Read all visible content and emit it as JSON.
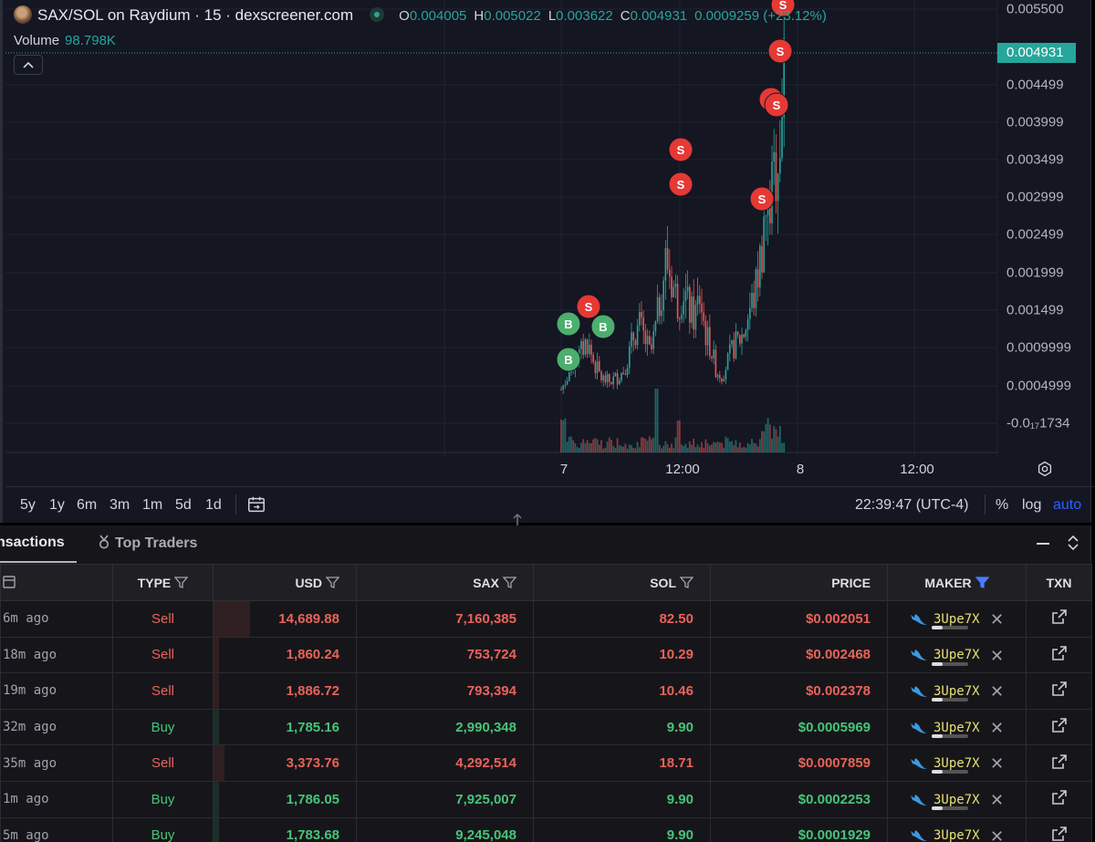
{
  "header": {
    "title": "SAX/SOL on Raydium · 15 · dexscreener.com",
    "ohlc": [
      {
        "label": "O",
        "value": "0.004005"
      },
      {
        "label": "H",
        "value": "0.005022"
      },
      {
        "label": "L",
        "value": "0.003622"
      },
      {
        "label": "C",
        "value": "0.004931"
      }
    ],
    "change": "0.0009259 (+23.12%)",
    "volume_label": "Volume",
    "volume_value": "98.798K"
  },
  "price_axis": {
    "ticks": [
      "0.005500",
      "0.004499",
      "0.003999",
      "0.003499",
      "0.002999",
      "0.002499",
      "0.001999",
      "0.001499",
      "0.0009999",
      "0.0004999",
      "-0.0₁₇1734"
    ],
    "current_price": "0.004931"
  },
  "time_axis": {
    "ticks": [
      "7",
      "12:00",
      "8",
      "12:00"
    ]
  },
  "toolbar": {
    "ranges": [
      "5y",
      "1y",
      "6m",
      "3m",
      "1m",
      "5d",
      "1d"
    ],
    "clock": "22:39:47 (UTC-4)",
    "percent": "%",
    "log": "log",
    "auto": "auto"
  },
  "trade_markers": [
    {
      "side": "B",
      "label": "B"
    },
    {
      "side": "S",
      "label": "S"
    },
    {
      "side": "B",
      "label": "B"
    },
    {
      "side": "B",
      "label": "B"
    },
    {
      "side": "S",
      "label": "S"
    },
    {
      "side": "S",
      "label": "S"
    },
    {
      "side": "S",
      "label": "S"
    },
    {
      "side": "S",
      "label": "S"
    },
    {
      "side": "S",
      "label": "S"
    },
    {
      "side": "S",
      "label": "S"
    },
    {
      "side": "S",
      "label": "S"
    }
  ],
  "tabs": {
    "transactions": "nsactions",
    "top_traders": "Top Traders"
  },
  "table": {
    "columns": {
      "type": "TYPE",
      "usd": "USD",
      "token": "SAX",
      "sol": "SOL",
      "price": "PRICE",
      "maker": "MAKER",
      "txn": "TXN"
    },
    "rows": [
      {
        "age": "6m ago",
        "type": "Sell",
        "usd": "14,689.88",
        "token": "7,160,385",
        "sol": "82.50",
        "price": "$0.002051",
        "maker": "3Upe7X"
      },
      {
        "age": "18m ago",
        "type": "Sell",
        "usd": "1,860.24",
        "token": "753,724",
        "sol": "10.29",
        "price": "$0.002468",
        "maker": "3Upe7X"
      },
      {
        "age": "19m ago",
        "type": "Sell",
        "usd": "1,886.72",
        "token": "793,394",
        "sol": "10.46",
        "price": "$0.002378",
        "maker": "3Upe7X"
      },
      {
        "age": "32m ago",
        "type": "Buy",
        "usd": "1,785.16",
        "token": "2,990,348",
        "sol": "9.90",
        "price": "$0.0005969",
        "maker": "3Upe7X"
      },
      {
        "age": "35m ago",
        "type": "Sell",
        "usd": "3,373.76",
        "token": "4,292,514",
        "sol": "18.71",
        "price": "$0.0007859",
        "maker": "3Upe7X"
      },
      {
        "age": "1m ago",
        "type": "Buy",
        "usd": "1,786.05",
        "token": "7,925,007",
        "sol": "9.90",
        "price": "$0.0002253",
        "maker": "3Upe7X"
      },
      {
        "age": "5m ago",
        "type": "Buy",
        "usd": "1,783.68",
        "token": "9,245,048",
        "sol": "9.90",
        "price": "$0.0001929",
        "maker": "3Upe7X"
      }
    ]
  },
  "colors": {
    "up": "#26a69a",
    "down": "#ef5350",
    "buy_marker": "#4caf6e",
    "sell_marker": "#e53935",
    "accent": "#2962ff"
  }
}
